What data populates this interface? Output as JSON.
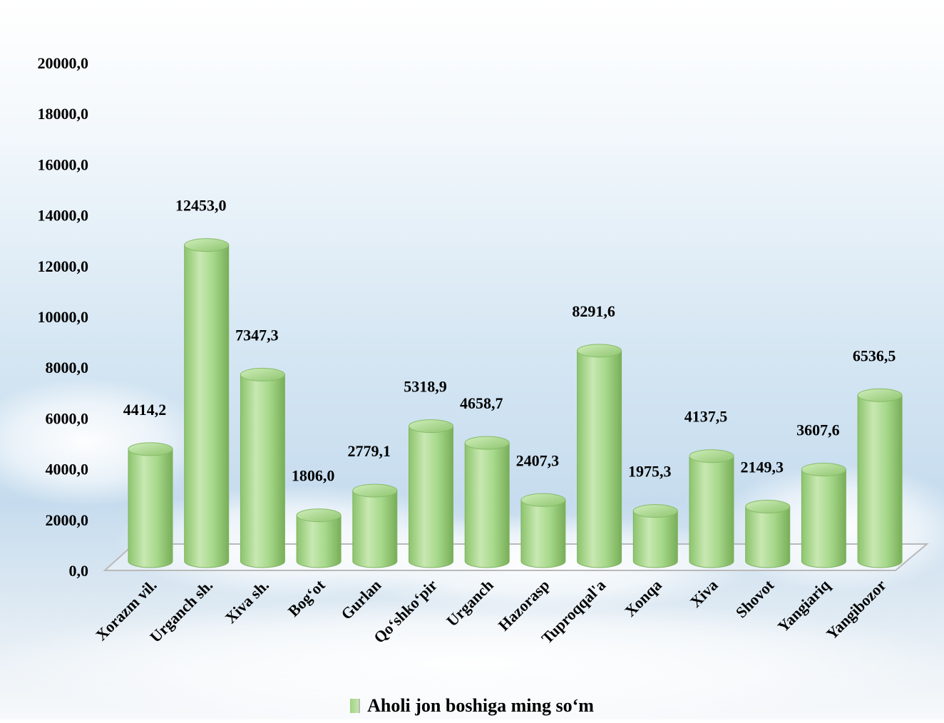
{
  "chart_data": {
    "type": "bar",
    "style": "3d-cylinder",
    "categories": [
      "Xorazm vil.",
      "Urganch sh.",
      "Xiva sh.",
      "Bog‘ot",
      "Gurlan",
      "Qo‘shko‘pir",
      "Urganch",
      "Hazorasp",
      "Tuproqqal'a",
      "Xonqa",
      "Xiva",
      "Shovot",
      "Yangiariq",
      "Yangibozor"
    ],
    "series": [
      {
        "name": "Aholi jon boshiga ming so‘m",
        "values": [
          4414.2,
          12453.0,
          7347.3,
          1806.0,
          2779.1,
          5318.9,
          4658.7,
          2407.3,
          8291.6,
          1975.3,
          4137.5,
          2149.3,
          3607.6,
          6536.5
        ],
        "labels": [
          "4414,2",
          "12453,0",
          "7347,3",
          "1806,0",
          "2779,1",
          "5318,9",
          "4658,7",
          "2407,3",
          "8291,6",
          "1975,3",
          "4137,5",
          "2149,3",
          "3607,6",
          "6536,5"
        ],
        "color": "#9fd283"
      }
    ],
    "yticks": [
      "0,0",
      "2000,0",
      "4000,0",
      "6000,0",
      "8000,0",
      "10000,0",
      "12000,0",
      "14000,0",
      "16000,0",
      "18000,0",
      "20000,0"
    ],
    "ylim": [
      0,
      20000
    ],
    "grid": false,
    "legend_position": "bottom",
    "title": "",
    "xlabel": "",
    "ylabel": ""
  }
}
